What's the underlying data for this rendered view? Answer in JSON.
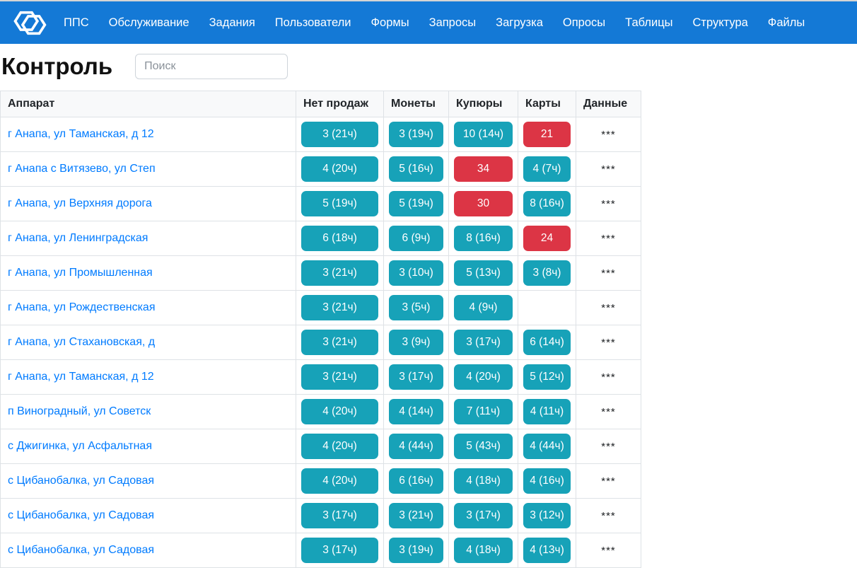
{
  "navbar": {
    "brand_icon": "interlocked-hexagons-logo",
    "items": [
      "ППС",
      "Обслуживание",
      "Задания",
      "Пользователи",
      "Формы",
      "Запросы",
      "Загрузка",
      "Опросы",
      "Таблицы",
      "Структура",
      "Файлы"
    ]
  },
  "header": {
    "title": "Контроль",
    "search": {
      "placeholder": "Поиск",
      "value": ""
    }
  },
  "table": {
    "columns": [
      "Аппарат",
      "Нет продаж",
      "Монеты",
      "Купюры",
      "Карты",
      "Данные"
    ],
    "column_keys": [
      "no-sales",
      "coins",
      "bills",
      "cards"
    ],
    "rows": [
      {
        "machine": "г Анапа, ул Таманская, д 12",
        "badges": [
          {
            "label": "3 (21ч)",
            "status": "info"
          },
          {
            "label": "3 (19ч)",
            "status": "info"
          },
          {
            "label": "10 (14ч)",
            "status": "info"
          },
          {
            "label": "21",
            "status": "danger"
          }
        ],
        "data": "***"
      },
      {
        "machine": "г Анапа с Витязево, ул Степ",
        "badges": [
          {
            "label": "4 (20ч)",
            "status": "info"
          },
          {
            "label": "5 (16ч)",
            "status": "info"
          },
          {
            "label": "34",
            "status": "danger"
          },
          {
            "label": "4 (7ч)",
            "status": "info"
          }
        ],
        "data": "***"
      },
      {
        "machine": "г Анапа, ул Верхняя дорога",
        "badges": [
          {
            "label": "5 (19ч)",
            "status": "info"
          },
          {
            "label": "5 (19ч)",
            "status": "info"
          },
          {
            "label": "30",
            "status": "danger"
          },
          {
            "label": "8 (16ч)",
            "status": "info"
          }
        ],
        "data": "***"
      },
      {
        "machine": "г Анапа, ул Ленинградская",
        "badges": [
          {
            "label": "6 (18ч)",
            "status": "info"
          },
          {
            "label": "6 (9ч)",
            "status": "info"
          },
          {
            "label": "8 (16ч)",
            "status": "info"
          },
          {
            "label": "24",
            "status": "danger"
          }
        ],
        "data": "***"
      },
      {
        "machine": "г Анапа, ул Промышленная",
        "badges": [
          {
            "label": "3 (21ч)",
            "status": "info"
          },
          {
            "label": "3 (10ч)",
            "status": "info"
          },
          {
            "label": "5 (13ч)",
            "status": "info"
          },
          {
            "label": "3 (8ч)",
            "status": "info"
          }
        ],
        "data": "***"
      },
      {
        "machine": "г Анапа, ул Рождественская",
        "badges": [
          {
            "label": "3 (21ч)",
            "status": "info"
          },
          {
            "label": "3 (5ч)",
            "status": "info"
          },
          {
            "label": "4 (9ч)",
            "status": "info"
          },
          null
        ],
        "data": "***"
      },
      {
        "machine": "г Анапа, ул Стахановская, д",
        "badges": [
          {
            "label": "3 (21ч)",
            "status": "info"
          },
          {
            "label": "3 (9ч)",
            "status": "info"
          },
          {
            "label": "3 (17ч)",
            "status": "info"
          },
          {
            "label": "6 (14ч)",
            "status": "info"
          }
        ],
        "data": "***"
      },
      {
        "machine": "г Анапа, ул Таманская, д 12",
        "badges": [
          {
            "label": "3 (21ч)",
            "status": "info"
          },
          {
            "label": "3 (17ч)",
            "status": "info"
          },
          {
            "label": "4 (20ч)",
            "status": "info"
          },
          {
            "label": "5 (12ч)",
            "status": "info"
          }
        ],
        "data": "***"
      },
      {
        "machine": "п Виноградный, ул Советск",
        "badges": [
          {
            "label": "4 (20ч)",
            "status": "info"
          },
          {
            "label": "4 (14ч)",
            "status": "info"
          },
          {
            "label": "7 (11ч)",
            "status": "info"
          },
          {
            "label": "4 (11ч)",
            "status": "info"
          }
        ],
        "data": "***"
      },
      {
        "machine": "с Джигинка, ул Асфальтная",
        "badges": [
          {
            "label": "4 (20ч)",
            "status": "info"
          },
          {
            "label": "4 (44ч)",
            "status": "info"
          },
          {
            "label": "5 (43ч)",
            "status": "info"
          },
          {
            "label": "4 (44ч)",
            "status": "info"
          }
        ],
        "data": "***"
      },
      {
        "machine": "с Цибанобалка, ул Садовая",
        "badges": [
          {
            "label": "4 (20ч)",
            "status": "info"
          },
          {
            "label": "6 (16ч)",
            "status": "info"
          },
          {
            "label": "4 (18ч)",
            "status": "info"
          },
          {
            "label": "4 (16ч)",
            "status": "info"
          }
        ],
        "data": "***"
      },
      {
        "machine": "с Цибанобалка, ул Садовая",
        "badges": [
          {
            "label": "3 (17ч)",
            "status": "info"
          },
          {
            "label": "3 (21ч)",
            "status": "info"
          },
          {
            "label": "3 (17ч)",
            "status": "info"
          },
          {
            "label": "3 (12ч)",
            "status": "info"
          }
        ],
        "data": "***"
      },
      {
        "machine": "с Цибанобалка, ул Садовая",
        "badges": [
          {
            "label": "3 (17ч)",
            "status": "info"
          },
          {
            "label": "3 (19ч)",
            "status": "info"
          },
          {
            "label": "4 (18ч)",
            "status": "info"
          },
          {
            "label": "4 (13ч)",
            "status": "info"
          }
        ],
        "data": "***"
      }
    ]
  },
  "colors": {
    "navbar_bg": "#1479d6",
    "badge_info": "#17a2b8",
    "badge_danger": "#dc3545",
    "link": "#007bff"
  }
}
